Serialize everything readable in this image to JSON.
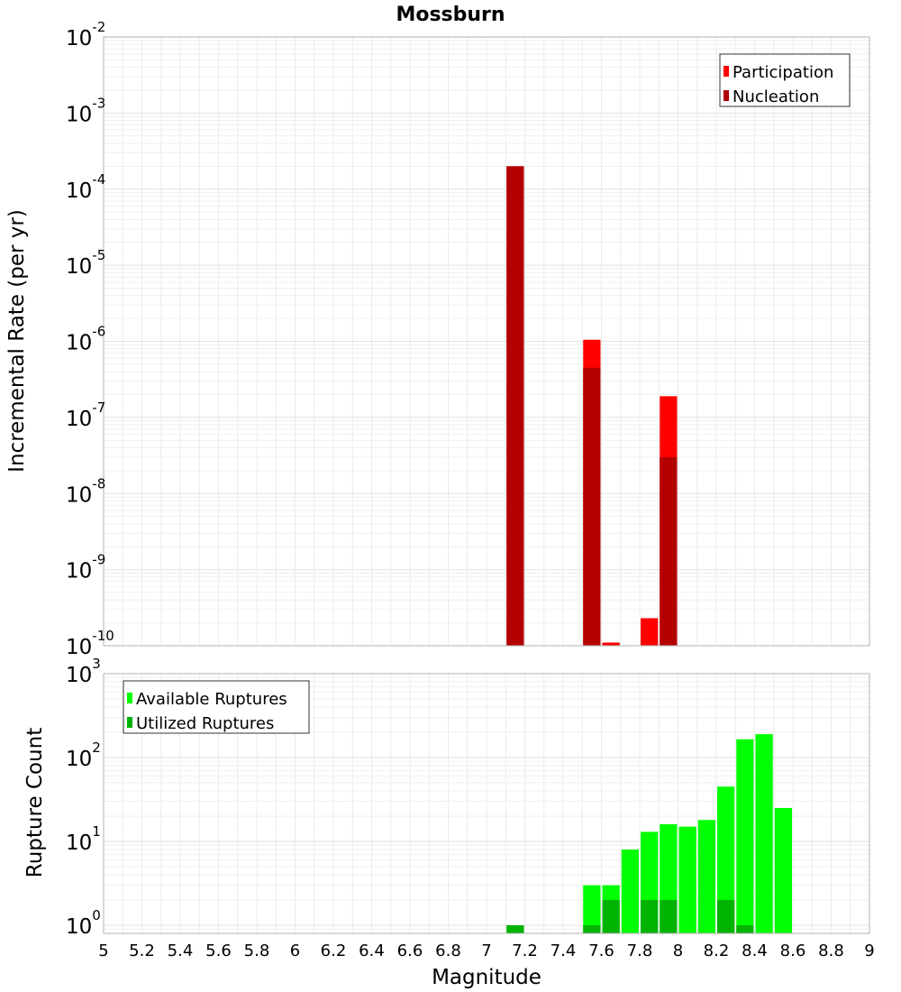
{
  "chart_data": [
    {
      "type": "bar",
      "title": "Mossburn",
      "xlabel": "",
      "ylabel": "Incremental Rate (per yr)",
      "yscale": "log",
      "ylim": [
        1e-10,
        0.01
      ],
      "xlim": [
        5,
        9
      ],
      "grid": true,
      "legend_position": "top-right",
      "y_ticks": [
        {
          "base": "10",
          "exp": "-10"
        },
        {
          "base": "10",
          "exp": "-9"
        },
        {
          "base": "10",
          "exp": "-8"
        },
        {
          "base": "10",
          "exp": "-7"
        },
        {
          "base": "10",
          "exp": "-6"
        },
        {
          "base": "10",
          "exp": "-5"
        },
        {
          "base": "10",
          "exp": "-4"
        },
        {
          "base": "10",
          "exp": "-3"
        },
        {
          "base": "10",
          "exp": "-2"
        }
      ],
      "series": [
        {
          "name": "Participation",
          "color": "#ff0000",
          "points": [
            {
              "x": 7.15,
              "y": 0.0002
            },
            {
              "x": 7.55,
              "y": 1.05e-06
            },
            {
              "x": 7.65,
              "y": 1.1e-10
            },
            {
              "x": 7.85,
              "y": 2.3e-10
            },
            {
              "x": 7.95,
              "y": 1.9e-07
            }
          ]
        },
        {
          "name": "Nucleation",
          "color": "#b30000",
          "points": [
            {
              "x": 7.15,
              "y": 0.0002
            },
            {
              "x": 7.55,
              "y": 4.5e-07
            },
            {
              "x": 7.95,
              "y": 3e-08
            }
          ]
        }
      ]
    },
    {
      "type": "bar",
      "title": "",
      "xlabel": "Magnitude",
      "ylabel": "Rupture Count",
      "yscale": "log",
      "ylim": [
        0.8,
        1000
      ],
      "xlim": [
        5,
        9
      ],
      "grid": true,
      "legend_position": "top-left",
      "x_ticks": [
        "5",
        "5.2",
        "5.4",
        "5.6",
        "5.8",
        "6",
        "6.2",
        "6.4",
        "6.6",
        "6.8",
        "7",
        "7.2",
        "7.4",
        "7.6",
        "7.8",
        "8",
        "8.2",
        "8.4",
        "8.6",
        "8.8",
        "9"
      ],
      "y_ticks": [
        {
          "base": "10",
          "exp": "0",
          "value": 1
        },
        {
          "base": "10",
          "exp": "1",
          "value": 10
        },
        {
          "base": "10",
          "exp": "2",
          "value": 100
        },
        {
          "base": "10",
          "exp": "3",
          "value": 1000
        }
      ],
      "series": [
        {
          "name": "Available Ruptures",
          "color": "#00ff00",
          "points": [
            {
              "x": 7.15,
              "y": 1
            },
            {
              "x": 7.55,
              "y": 3
            },
            {
              "x": 7.65,
              "y": 3
            },
            {
              "x": 7.75,
              "y": 8
            },
            {
              "x": 7.85,
              "y": 13
            },
            {
              "x": 7.95,
              "y": 16
            },
            {
              "x": 8.05,
              "y": 15
            },
            {
              "x": 8.15,
              "y": 18
            },
            {
              "x": 8.25,
              "y": 45
            },
            {
              "x": 8.35,
              "y": 165
            },
            {
              "x": 8.45,
              "y": 190
            },
            {
              "x": 8.55,
              "y": 25
            }
          ]
        },
        {
          "name": "Utilized Ruptures",
          "color": "#00b300",
          "points": [
            {
              "x": 7.15,
              "y": 1
            },
            {
              "x": 7.55,
              "y": 1
            },
            {
              "x": 7.65,
              "y": 2
            },
            {
              "x": 7.85,
              "y": 2
            },
            {
              "x": 7.95,
              "y": 2
            },
            {
              "x": 8.25,
              "y": 2
            },
            {
              "x": 8.35,
              "y": 1
            }
          ]
        }
      ]
    }
  ]
}
